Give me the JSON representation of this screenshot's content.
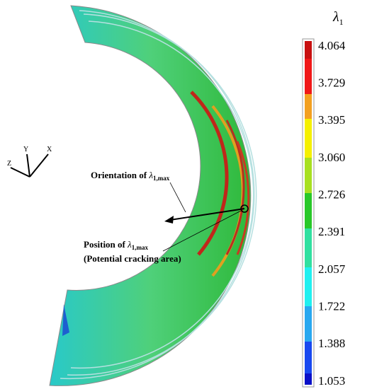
{
  "colorbar": {
    "title": {
      "symbol": "λ",
      "subscript": "1"
    },
    "labels": [
      "4.064",
      "3.729",
      "3.395",
      "3.060",
      "2.726",
      "2.391",
      "2.057",
      "1.722",
      "1.388",
      "1.053"
    ]
  },
  "axes_triad": {
    "y": "Y",
    "x": "X",
    "z": "Z"
  },
  "annotations": [
    {
      "text": "Orientation of ",
      "symbol": "λ",
      "subscript": "1,max"
    },
    {
      "text": "Position of ",
      "symbol": "λ",
      "subscript": "1,max"
    },
    {
      "text": "(Potential cracking area)"
    }
  ]
}
